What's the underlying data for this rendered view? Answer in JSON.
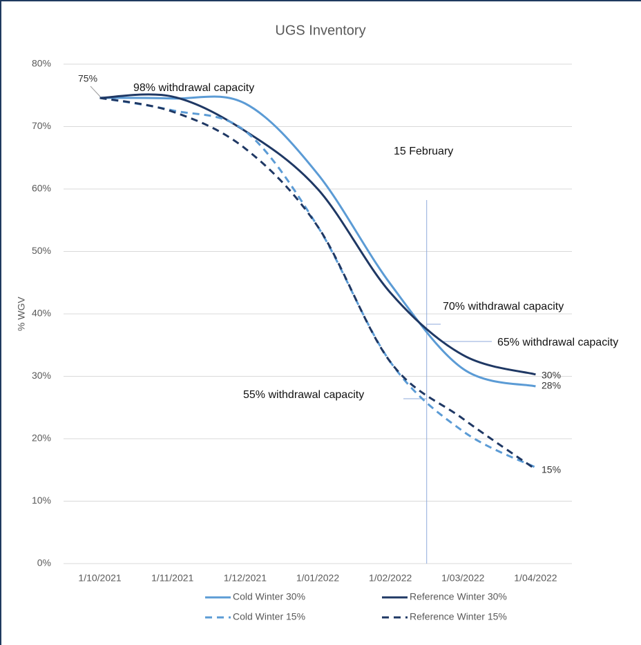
{
  "chart_data": {
    "type": "line",
    "title": "UGS Inventory",
    "y_label": "% WGV",
    "categories": [
      "1/10/2021",
      "1/11/2021",
      "1/12/2021",
      "1/01/2022",
      "1/02/2022",
      "1/03/2022",
      "1/04/2022"
    ],
    "series": [
      {
        "name": "Cold Winter 30%",
        "color": "#5b9bd5",
        "dashed": false,
        "values": [
          74.6,
          74.5,
          73.7,
          62.4,
          44.8,
          31.2,
          28.4
        ]
      },
      {
        "name": "Reference Winter 30%",
        "color": "#1f3864",
        "dashed": false,
        "values": [
          74.6,
          74.8,
          69.3,
          60.0,
          43.4,
          33.4,
          30.3
        ]
      },
      {
        "name": "Cold Winter 15%",
        "color": "#5b9bd5",
        "dashed": true,
        "values": [
          74.6,
          72.6,
          69.3,
          54.0,
          32.3,
          21.2,
          15.4
        ]
      },
      {
        "name": "Reference Winter 15%",
        "color": "#1f3864",
        "dashed": true,
        "values": [
          74.6,
          72.4,
          66.5,
          54.0,
          32.3,
          23.2,
          15.1
        ]
      }
    ],
    "ylim": [
      0,
      80
    ],
    "yticks": [
      {
        "value": 0,
        "label": "0%"
      },
      {
        "value": 10,
        "label": "10%"
      },
      {
        "value": 20,
        "label": "20%"
      },
      {
        "value": 30,
        "label": "30%"
      },
      {
        "value": 40,
        "label": "40%"
      },
      {
        "value": 50,
        "label": "50%"
      },
      {
        "value": 60,
        "label": "60%"
      },
      {
        "value": 70,
        "label": "70%"
      },
      {
        "value": 80,
        "label": "80%"
      }
    ],
    "grid": true,
    "legend": "bottom",
    "annotations": [
      "75%",
      "98% withdrawal capacity",
      "15 February",
      "70% withdrawal capacity",
      "65% withdrawal capacity",
      "55% withdrawal capacity",
      "30%",
      "28%",
      "15%"
    ]
  }
}
